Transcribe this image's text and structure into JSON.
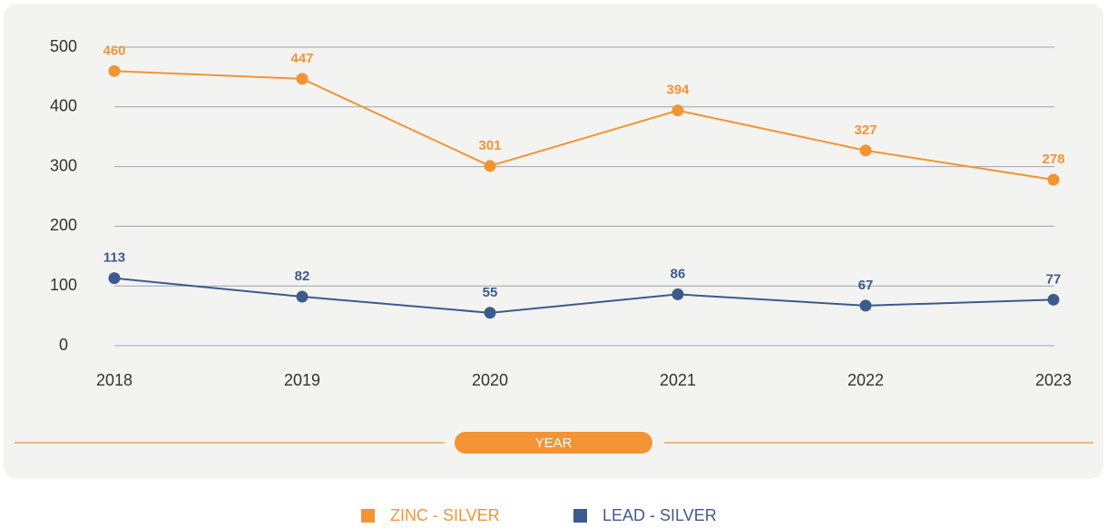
{
  "chart_data": {
    "type": "line",
    "categories": [
      "2018",
      "2019",
      "2020",
      "2021",
      "2022",
      "2023"
    ],
    "x_label": "YEAR",
    "series": [
      {
        "name": "ZINC - SILVER",
        "color": "#f29434",
        "values": [
          460,
          447,
          301,
          394,
          327,
          278
        ]
      },
      {
        "name": "LEAD - SILVER",
        "color": "#3d5a8e",
        "values": [
          113,
          82,
          55,
          86,
          67,
          77
        ]
      }
    ],
    "ylim": [
      0,
      500
    ],
    "yticks": [
      0,
      100,
      200,
      300,
      400,
      500
    ],
    "grid": true,
    "legend": "bottom"
  }
}
